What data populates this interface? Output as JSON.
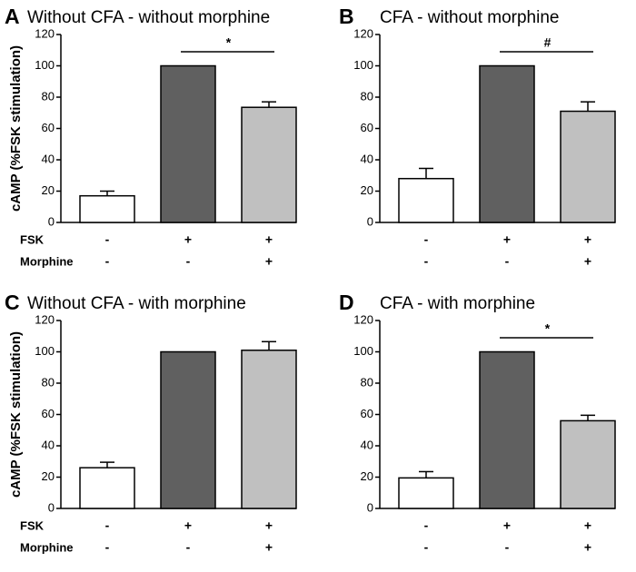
{
  "chart_data": [
    {
      "type": "bar",
      "panel": "A",
      "title": "Without CFA - without morphine",
      "ylabel": "cAMP (%FSK stimulation)",
      "values": [
        17,
        100,
        73.5
      ],
      "errors": [
        3,
        null,
        3.5
      ],
      "colors": [
        "#ffffff",
        "#606060",
        "#c0c0c0"
      ],
      "ylim": [
        0,
        120
      ],
      "yticks": [
        0,
        20,
        40,
        60,
        80,
        100,
        120
      ],
      "condition_rows": [
        {
          "name": "FSK",
          "values": [
            "-",
            "+",
            "+"
          ]
        },
        {
          "name": "Morphine",
          "values": [
            "-",
            "-",
            "+"
          ]
        }
      ],
      "significance": "*"
    },
    {
      "type": "bar",
      "panel": "B",
      "title": "CFA - without morphine",
      "values": [
        28,
        100,
        71
      ],
      "errors": [
        6.5,
        null,
        6
      ],
      "colors": [
        "#ffffff",
        "#606060",
        "#c0c0c0"
      ],
      "ylim": [
        0,
        120
      ],
      "yticks": [
        0,
        20,
        40,
        60,
        80,
        100,
        120
      ],
      "condition_rows": [
        {
          "values": [
            "-",
            "+",
            "+"
          ]
        },
        {
          "values": [
            "-",
            "-",
            "+"
          ]
        }
      ],
      "significance": "#"
    },
    {
      "type": "bar",
      "panel": "C",
      "title": "Without CFA - with morphine",
      "ylabel": "cAMP (%FSK stimulation)",
      "values": [
        26,
        100,
        101
      ],
      "errors": [
        3.5,
        null,
        5.5
      ],
      "colors": [
        "#ffffff",
        "#606060",
        "#c0c0c0"
      ],
      "ylim": [
        0,
        120
      ],
      "yticks": [
        0,
        20,
        40,
        60,
        80,
        100,
        120
      ],
      "condition_rows": [
        {
          "name": "FSK",
          "values": [
            "-",
            "+",
            "+"
          ]
        },
        {
          "name": "Morphine",
          "values": [
            "-",
            "-",
            "+"
          ]
        }
      ]
    },
    {
      "type": "bar",
      "panel": "D",
      "title": "CFA - with morphine",
      "values": [
        19.5,
        100,
        56
      ],
      "errors": [
        4,
        null,
        3.5
      ],
      "colors": [
        "#ffffff",
        "#606060",
        "#c0c0c0"
      ],
      "ylim": [
        0,
        120
      ],
      "yticks": [
        0,
        20,
        40,
        60,
        80,
        100,
        120
      ],
      "condition_rows": [
        {
          "values": [
            "-",
            "+",
            "+"
          ]
        },
        {
          "values": [
            "-",
            "-",
            "+"
          ]
        }
      ],
      "significance": "*"
    }
  ]
}
